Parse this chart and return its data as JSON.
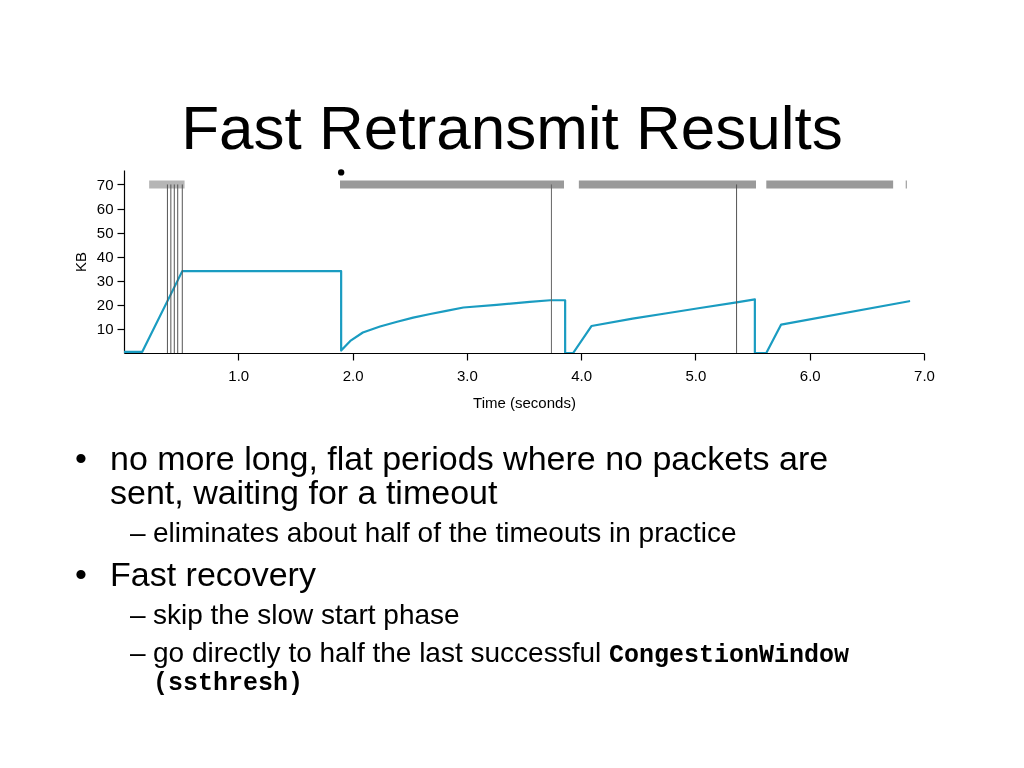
{
  "chart_data": {
    "type": "line",
    "title": "Fast Retransmit Results",
    "xlabel": "Time (seconds)",
    "ylabel": "KB",
    "series": [
      {
        "color": "#1a9cc1",
        "x": [
          0,
          0.16,
          0.51,
          1.9,
          1.9,
          1.98,
          2.09,
          2.24,
          2.39,
          2.53,
          2.68,
          2.82,
          2.97,
          3.26,
          3.55,
          3.73,
          3.86,
          3.86,
          3.93,
          4.09,
          4.45,
          4.75,
          5.04,
          5.36,
          5.52,
          5.52,
          5.62,
          5.75,
          6.87
        ],
        "values": [
          0.5,
          0.5,
          34,
          34,
          1,
          5,
          8.5,
          11,
          13,
          14.7,
          16.2,
          17.5,
          18.9,
          20,
          21.2,
          21.9,
          21.9,
          0,
          0,
          11.2,
          14.3,
          16.5,
          18.7,
          21,
          22.3,
          0,
          0,
          11.8,
          21.5
        ]
      },
      {
        "type": "scatter",
        "color": "#000000",
        "x": [
          1.9
        ],
        "values": [
          75
        ]
      }
    ],
    "xlim": [
      0,
      7
    ],
    "xticks": [
      {
        "value": 1,
        "label": "1.0"
      },
      {
        "value": 2,
        "label": "2.0"
      },
      {
        "value": 3,
        "label": "3.0"
      },
      {
        "value": 4,
        "label": "4.0"
      },
      {
        "value": 5,
        "label": "5.0"
      },
      {
        "value": 6,
        "label": "6.0"
      },
      {
        "value": 7,
        "label": "7.0"
      }
    ],
    "ylim": [
      0,
      76
    ],
    "yticks": [
      10,
      20,
      30,
      40,
      50,
      60,
      70
    ],
    "ref_lines": [
      {
        "axis": "x",
        "value": 0.38,
        "color": "#555555"
      },
      {
        "axis": "x",
        "value": 0.41,
        "color": "#555555"
      },
      {
        "axis": "x",
        "value": 0.44,
        "color": "#555555"
      },
      {
        "axis": "x",
        "value": 0.47,
        "color": "#555555"
      },
      {
        "axis": "x",
        "value": 0.51,
        "color": "#555555"
      },
      {
        "axis": "x",
        "value": 3.74,
        "color": "#666666"
      },
      {
        "axis": "x",
        "value": 5.36,
        "color": "#555555"
      }
    ],
    "bands": [
      {
        "axis": "x",
        "from": 0.22,
        "to": 0.53,
        "color": "#b5b5b5"
      },
      {
        "axis": "x",
        "from": 1.89,
        "to": 3.85,
        "color": "#9a9a9a"
      },
      {
        "axis": "x",
        "from": 3.98,
        "to": 5.53,
        "color": "#9a9a9a"
      },
      {
        "axis": "x",
        "from": 5.62,
        "to": 6.73,
        "color": "#9a9a9a"
      },
      {
        "axis": "x",
        "from": 6.84,
        "to": 6.85,
        "color": "#9a9a9a"
      }
    ],
    "annotations": [
      "• no more long, flat periods where no packets are sent, waiting for a timeout",
      "– eliminates about half of the timeouts in practice",
      "• Fast recovery",
      "– skip the slow start phase",
      "– go directly to half the last successful CongestionWindow",
      "(ssthresh)"
    ]
  }
}
